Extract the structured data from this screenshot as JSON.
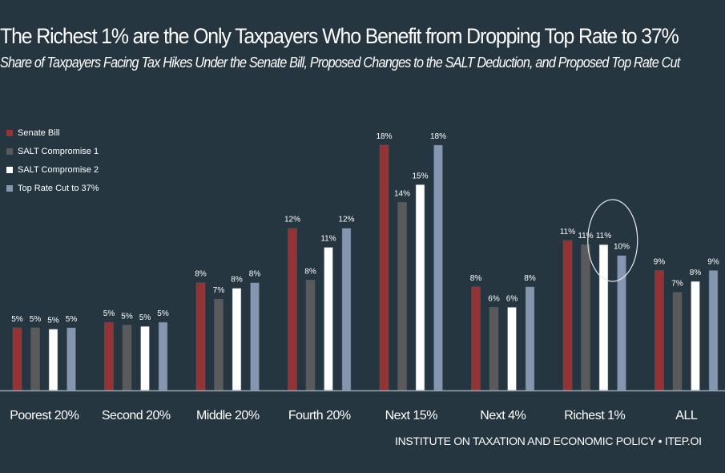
{
  "chart_data": {
    "type": "bar",
    "title": "The Richest 1% are the Only Taxpayers Who Benefit from Dropping Top Rate to 37%",
    "subtitle": "Share of Taxpayers Facing Tax Hikes Under the Senate Bill, Proposed Changes to the SALT Deduction, and Proposed Top Rate Cut",
    "xlabel": "",
    "ylabel": "",
    "ylim": [
      0,
      18
    ],
    "grid": false,
    "legend_position": "top-left",
    "categories": [
      "Poorest 20%",
      "Second 20%",
      "Middle 20%",
      "Fourth 20%",
      "Next 15%",
      "Next 4%",
      "Richest 1%",
      "ALL"
    ],
    "series": [
      {
        "name": "Senate Bill",
        "color": "#963234",
        "values": [
          4.6,
          5.0,
          7.9,
          11.9,
          18.0,
          7.6,
          11.0,
          8.8
        ],
        "labels": [
          "5%",
          "5%",
          "8%",
          "12%",
          "18%",
          "8%",
          "11%",
          "9%"
        ]
      },
      {
        "name": "SALT Compromise 1",
        "color": "#5a5a5a",
        "values": [
          4.6,
          4.8,
          6.7,
          8.1,
          13.8,
          6.1,
          10.7,
          7.2
        ],
        "labels": [
          "5%",
          "5%",
          "7%",
          "8%",
          "14%",
          "6%",
          "11%",
          "7%"
        ]
      },
      {
        "name": "SALT Compromise 2",
        "color": "#ffffff",
        "values": [
          4.5,
          4.7,
          7.5,
          10.5,
          15.1,
          6.1,
          10.7,
          8.0
        ],
        "labels": [
          "5%",
          "5%",
          "8%",
          "11%",
          "15%",
          "6%",
          "11%",
          "8%"
        ]
      },
      {
        "name": "Top Rate Cut to 37%",
        "color": "#8596b0",
        "values": [
          4.6,
          5.0,
          7.9,
          11.9,
          18.0,
          7.6,
          9.9,
          8.8
        ],
        "labels": [
          "5%",
          "5%",
          "8%",
          "12%",
          "18%",
          "8%",
          "10%",
          "9%"
        ]
      }
    ],
    "annotations": [
      "circle highlighting Richest 1% SALT Compromise 2 vs Top Rate Cut to 37%"
    ]
  },
  "footer": "INSTITUTE ON TAXATION AND ECONOMIC POLICY • ITEP.OI"
}
